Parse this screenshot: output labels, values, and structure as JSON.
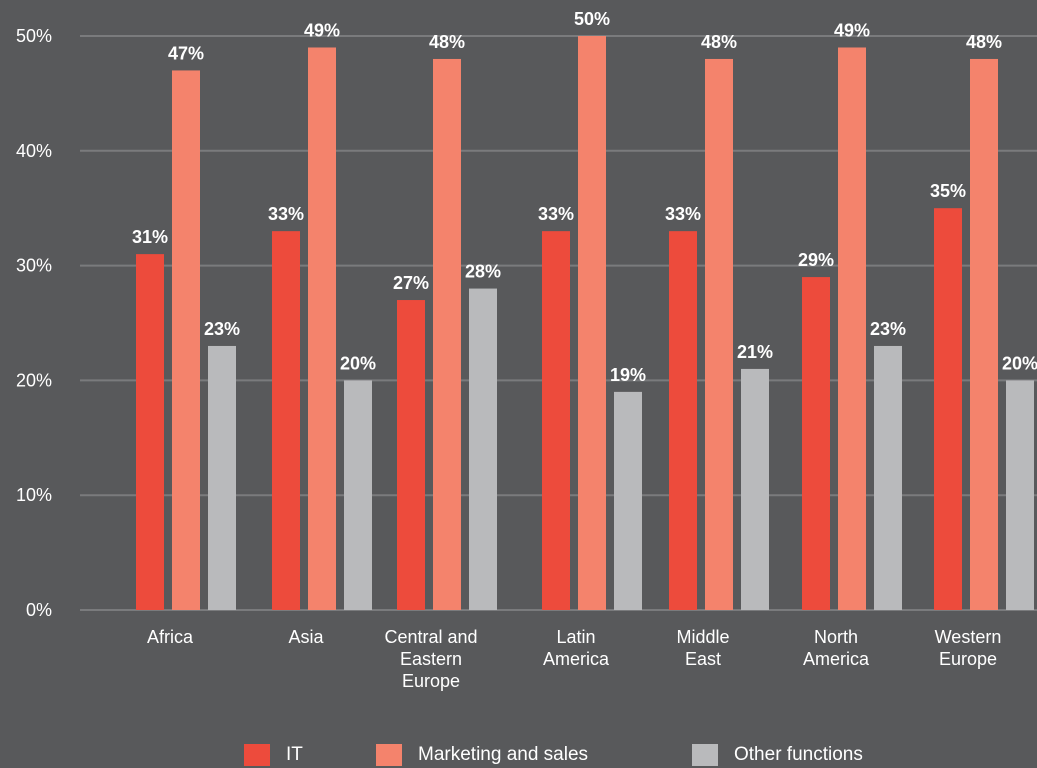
{
  "chart_data": {
    "type": "bar",
    "categories": [
      [
        "Africa"
      ],
      [
        "Asia"
      ],
      [
        "Central and",
        "Eastern",
        "Europe"
      ],
      [
        "Latin",
        "America"
      ],
      [
        "Middle",
        "East"
      ],
      [
        "North",
        "America"
      ],
      [
        "Western",
        "Europe"
      ]
    ],
    "series": [
      {
        "name": "IT",
        "color": "#ed4b3c",
        "values": [
          31,
          33,
          27,
          33,
          33,
          29,
          35
        ]
      },
      {
        "name": "Marketing and sales",
        "color": "#f4836c",
        "values": [
          47,
          49,
          48,
          50,
          48,
          49,
          48
        ]
      },
      {
        "name": "Other functions",
        "color": "#b9babc",
        "values": [
          23,
          20,
          28,
          19,
          21,
          23,
          20
        ]
      }
    ],
    "value_suffix": "%",
    "yticks": [
      "0%",
      "10%",
      "20%",
      "30%",
      "40%",
      "50%"
    ],
    "ylim": [
      0,
      50
    ],
    "grid": true,
    "legend_position": "bottom",
    "colors": {
      "background": "#58595b",
      "grid": "#7a7b7d",
      "text": "#ffffff"
    }
  }
}
